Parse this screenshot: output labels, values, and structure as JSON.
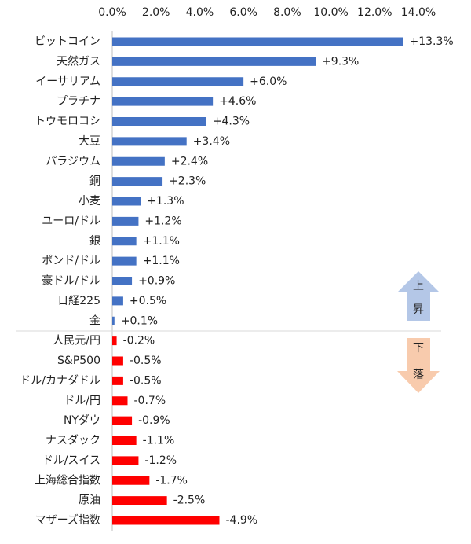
{
  "chart_data": {
    "type": "hbar",
    "categories": [
      "ビットコイン",
      "天然ガス",
      "イーサリアム",
      "プラチナ",
      "トウモロコシ",
      "大豆",
      "パラジウム",
      "銅",
      "小麦",
      "ユーロ/ドル",
      "銀",
      "ポンド/ドル",
      "豪ドル/ドル",
      "日経225",
      "金",
      "人民元/円",
      "S&P500",
      "ドル/カナダドル",
      "ドル/円",
      "NYダウ",
      "ナスダック",
      "ドル/スイス",
      "上海総合指数",
      "原油",
      "マザーズ指数"
    ],
    "values": [
      13.3,
      9.3,
      6.0,
      4.6,
      4.3,
      3.4,
      2.4,
      2.3,
      1.3,
      1.2,
      1.1,
      1.1,
      0.9,
      0.5,
      0.1,
      -0.2,
      -0.5,
      -0.5,
      -0.7,
      -0.9,
      -1.1,
      -1.2,
      -1.7,
      -2.5,
      -4.9
    ],
    "value_labels": [
      "+13.3%",
      "+9.3%",
      "+6.0%",
      "+4.6%",
      "+4.3%",
      "+3.4%",
      "+2.4%",
      "+2.3%",
      "+1.3%",
      "+1.2%",
      "+1.1%",
      "+1.1%",
      "+0.9%",
      "+0.5%",
      "+0.1%",
      "-0.2%",
      "-0.5%",
      "-0.5%",
      "-0.7%",
      "-0.9%",
      "-1.1%",
      "-1.2%",
      "-1.7%",
      "-2.5%",
      "-4.9%"
    ],
    "color_positive": "#4472c4",
    "color_negative": "#ff0000",
    "xlim": [
      0,
      14
    ],
    "xticks": [
      {
        "value": 0,
        "label": "0.0%"
      },
      {
        "value": 2,
        "label": "2.0%"
      },
      {
        "value": 4,
        "label": "4.0%"
      },
      {
        "value": 6,
        "label": "6.0%"
      },
      {
        "value": 8,
        "label": "8.0%"
      },
      {
        "value": 10,
        "label": "10.0%"
      },
      {
        "value": 12,
        "label": "12.0%"
      },
      {
        "value": 14,
        "label": "14.0%"
      }
    ],
    "annotations": {
      "up": [
        "上",
        "昇"
      ],
      "down": [
        "下",
        "落"
      ]
    }
  }
}
